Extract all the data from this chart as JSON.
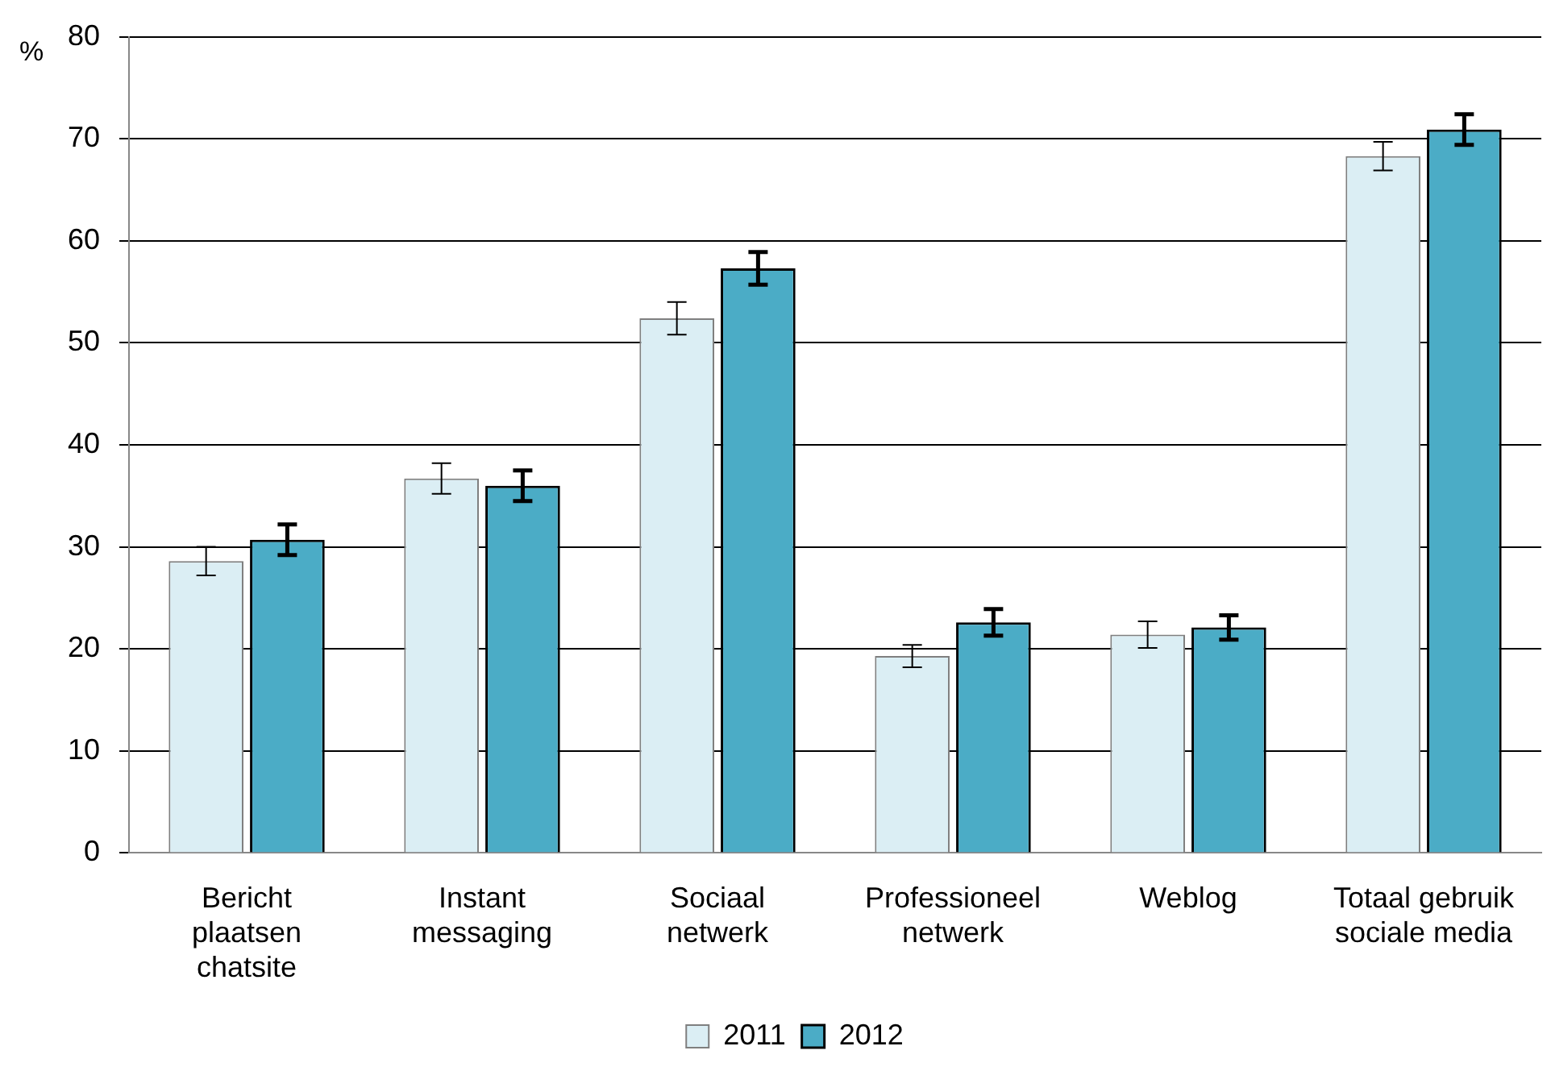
{
  "chart_data": {
    "type": "bar",
    "ylabel": "%",
    "categories": [
      "Bericht plaatsen chatsite",
      "Instant messaging",
      "Sociaal netwerk",
      "Professioneel netwerk",
      "Weblog",
      "Totaal gebruik sociale media"
    ],
    "series": [
      {
        "name": "2011",
        "color": "#dbeef4",
        "values": [
          28.6,
          36.7,
          52.4,
          19.3,
          21.4,
          68.3
        ],
        "errors": [
          1.4,
          1.5,
          1.6,
          1.1,
          1.3,
          1.4
        ]
      },
      {
        "name": "2012",
        "color": "#4bacc6",
        "values": [
          30.7,
          36.0,
          57.3,
          22.6,
          22.1,
          70.9
        ],
        "errors": [
          1.5,
          1.5,
          1.6,
          1.3,
          1.2,
          1.5
        ]
      }
    ],
    "ylim": [
      0,
      80
    ],
    "yticks": [
      0,
      10,
      20,
      30,
      40,
      50,
      60,
      70,
      80
    ],
    "grid": "y",
    "legend": "bottom"
  }
}
